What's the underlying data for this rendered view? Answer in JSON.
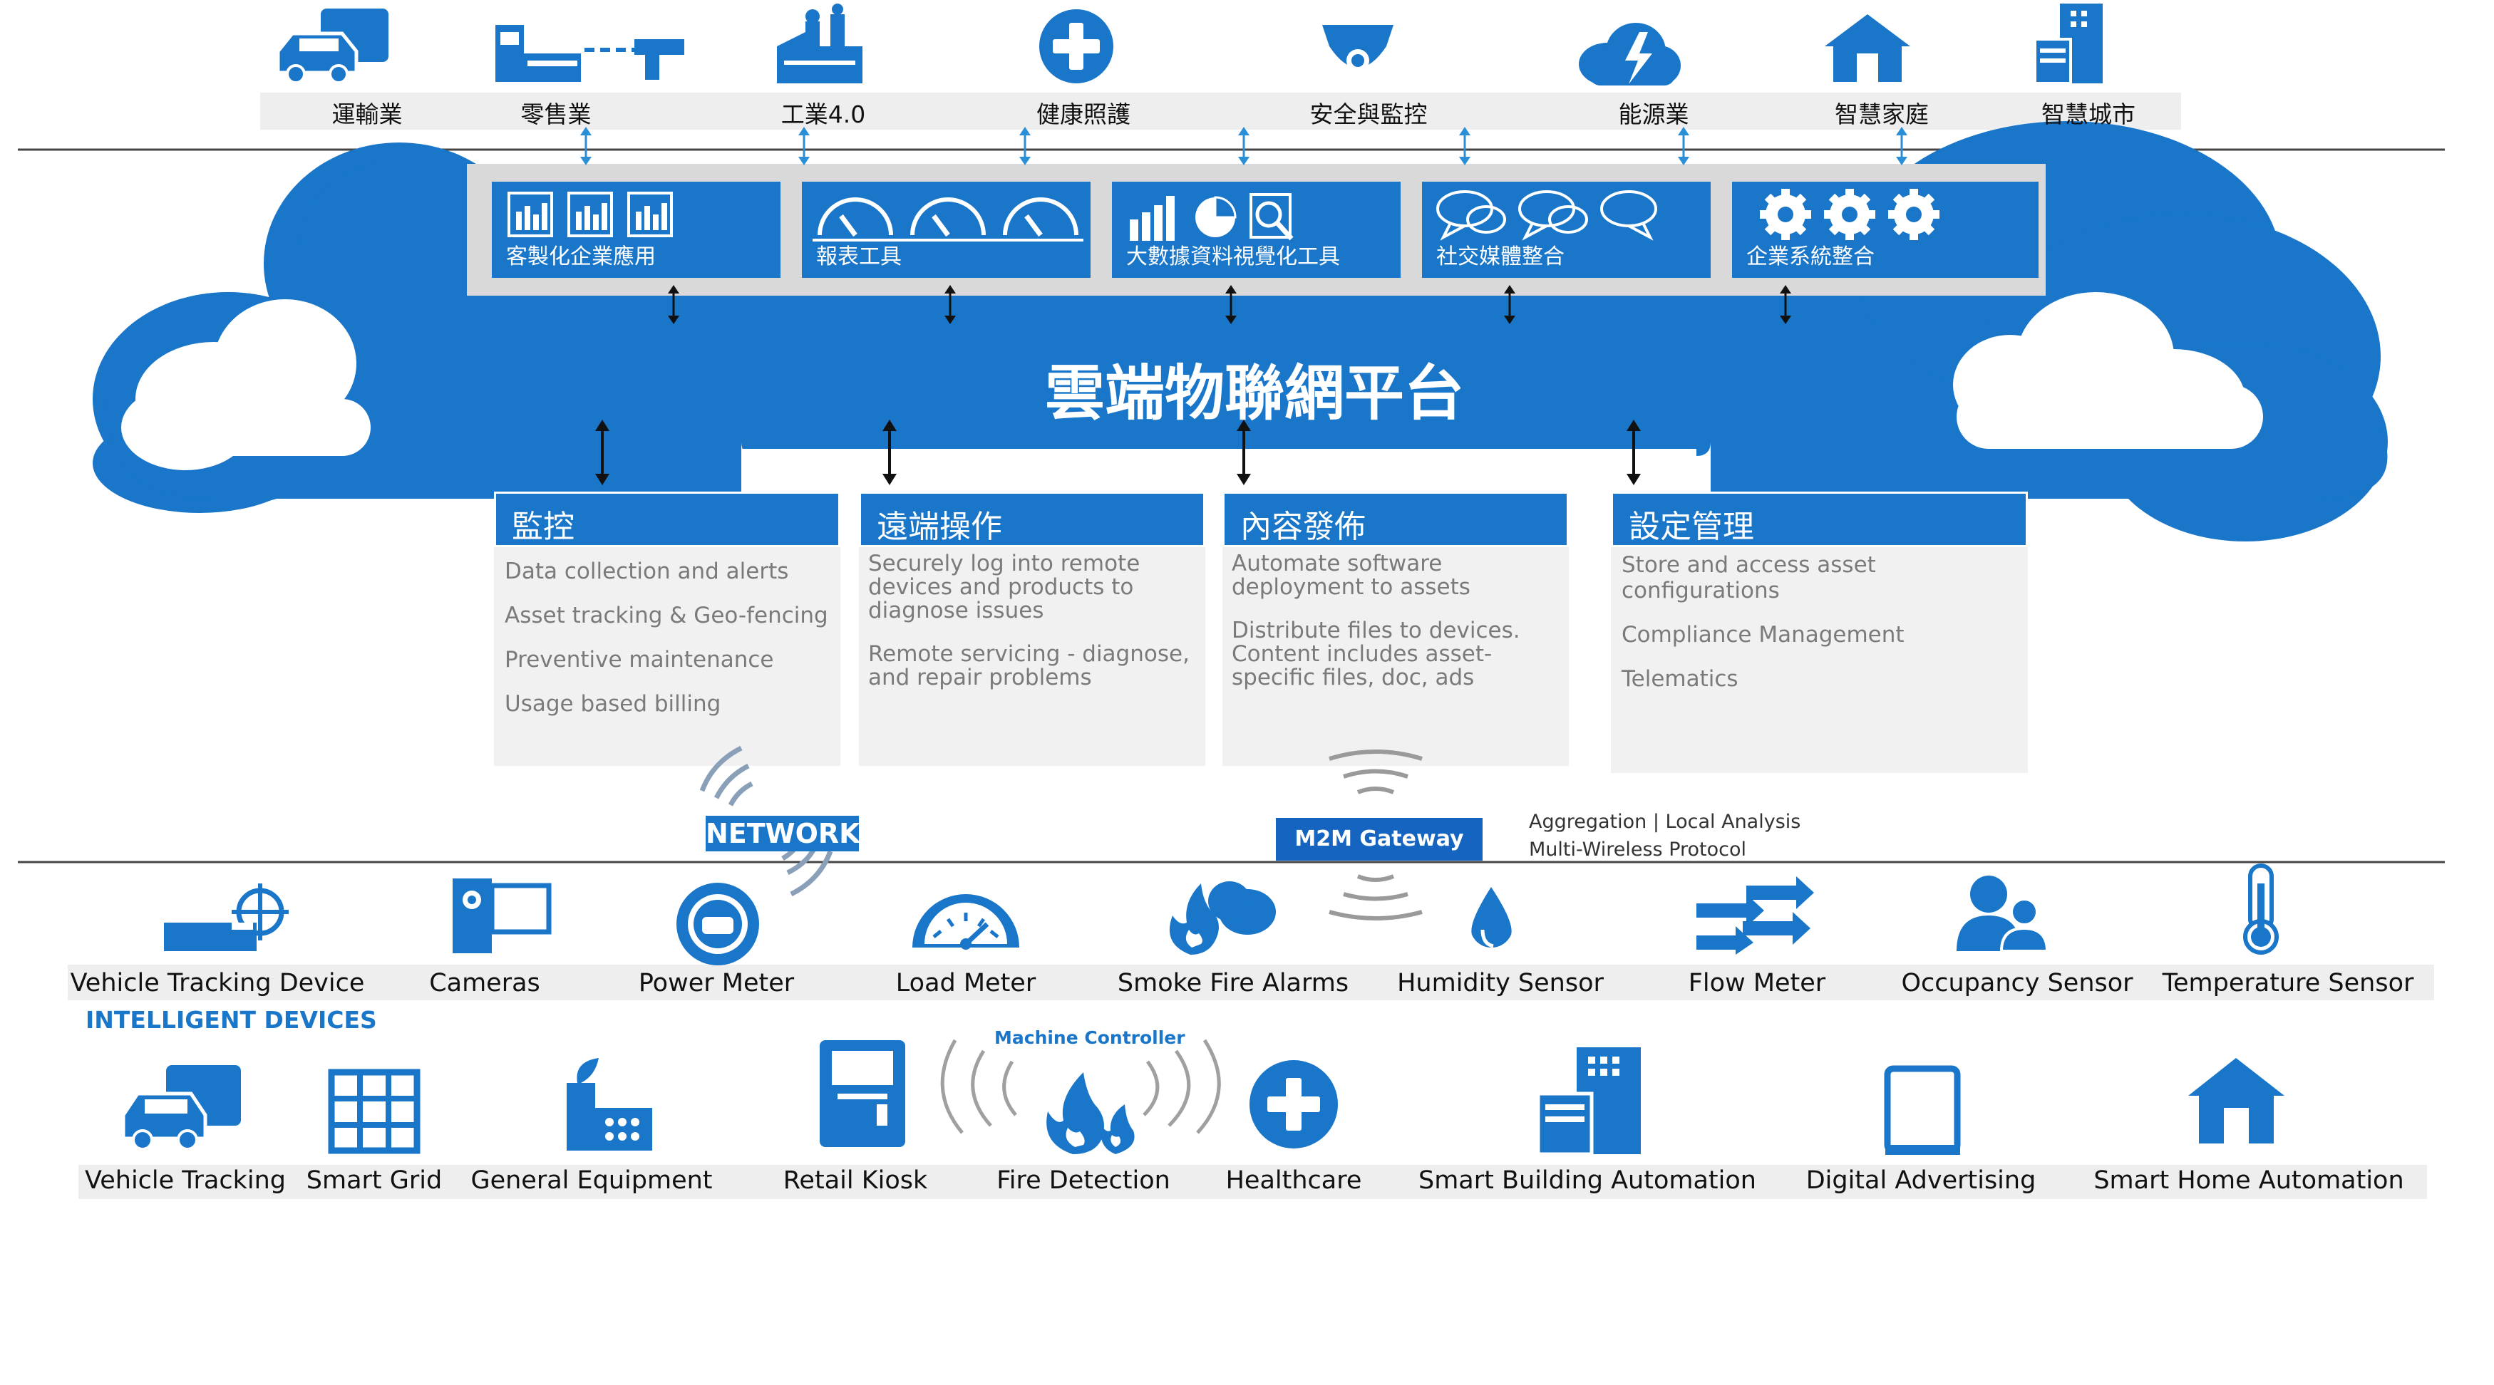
{
  "industries": [
    {
      "label": "運輸業",
      "icon": "truck-car-icon"
    },
    {
      "label": "零售業",
      "icon": "retail-icon"
    },
    {
      "label": "工業4.0",
      "icon": "factory-icon"
    },
    {
      "label": "健康照護",
      "icon": "medical-cross-icon"
    },
    {
      "label": "安全與監控",
      "icon": "security-camera-icon"
    },
    {
      "label": "能源業",
      "icon": "energy-cloud-icon"
    },
    {
      "label": "智慧家庭",
      "icon": "home-icon"
    },
    {
      "label": "智慧城市",
      "icon": "city-building-icon"
    }
  ],
  "tools": [
    {
      "label": "客製化企業應用",
      "icon": "dashboard-panels-icon"
    },
    {
      "label": "報表工具",
      "icon": "gauge-icon"
    },
    {
      "label": "大數據資料視覺化工具",
      "icon": "chart-analytics-icon"
    },
    {
      "label": "社交媒體整合",
      "icon": "chat-bubbles-icon"
    },
    {
      "label": "企業系統整合",
      "icon": "gears-icon"
    }
  ],
  "platform": {
    "title": "雲端物聯網平台"
  },
  "services": [
    {
      "title": "監控",
      "items": [
        "Data collection and alerts",
        "Asset tracking & Geo-fencing",
        "Preventive maintenance",
        "Usage based billing"
      ]
    },
    {
      "title": "遠端操作",
      "items": [
        "Securely log into remote devices and products to diagnose issues",
        "Remote servicing - diagnose, and repair problems"
      ]
    },
    {
      "title": "內容發佈",
      "items": [
        "Automate software deployment to assets",
        "Distribute files to devices. Content includes asset-specific files, doc, ads"
      ]
    },
    {
      "title": "設定管理",
      "items": [
        "Store and access asset configurations",
        "Compliance Management",
        "Telematics"
      ]
    }
  ],
  "network_label": "NETWORK",
  "gateway": {
    "label": "M2M Gateway",
    "note1": "Aggregation | Local Analysis",
    "note2": "Multi-Wireless Protocol"
  },
  "devices_row1": [
    {
      "label": "Vehicle Tracking Device",
      "icon": "tracking-device-icon"
    },
    {
      "label": "Cameras",
      "icon": "camera-icon"
    },
    {
      "label": "Power Meter",
      "icon": "power-meter-icon"
    },
    {
      "label": "Load Meter",
      "icon": "load-meter-icon"
    },
    {
      "label": "Smoke Fire Alarms",
      "icon": "smoke-fire-icon"
    },
    {
      "label": "Humidity Sensor",
      "icon": "water-drop-icon"
    },
    {
      "label": "Flow Meter",
      "icon": "flow-arrows-icon"
    },
    {
      "label": "Occupancy Sensor",
      "icon": "people-icon"
    },
    {
      "label": "Temperature Sensor",
      "icon": "thermometer-icon"
    }
  ],
  "intelligent_devices_label": "INTELLIGENT DEVICES",
  "machine_controller_label": "Machine Controller",
  "devices_row2": [
    {
      "label": "Vehicle Tracking",
      "icon": "truck-car-icon"
    },
    {
      "label": "Smart Grid",
      "icon": "grid-icon"
    },
    {
      "label": "General Equipment",
      "icon": "equipment-icon"
    },
    {
      "label": "Retail Kiosk",
      "icon": "kiosk-icon"
    },
    {
      "label": "Fire Detection",
      "icon": "fire-icon"
    },
    {
      "label": "Healthcare",
      "icon": "medical-cross-icon"
    },
    {
      "label": "Smart Building Automation",
      "icon": "building-icon"
    },
    {
      "label": "Digital Advertising",
      "icon": "tablet-icon"
    },
    {
      "label": "Smart Home Automation",
      "icon": "home-icon"
    }
  ],
  "colors": {
    "brand_blue": "#1976c9",
    "dark_blue": "#1565c0",
    "panel_grey": "#d9d9d9",
    "card_grey": "#f1f1f1",
    "text_grey": "#7a7a7a"
  }
}
